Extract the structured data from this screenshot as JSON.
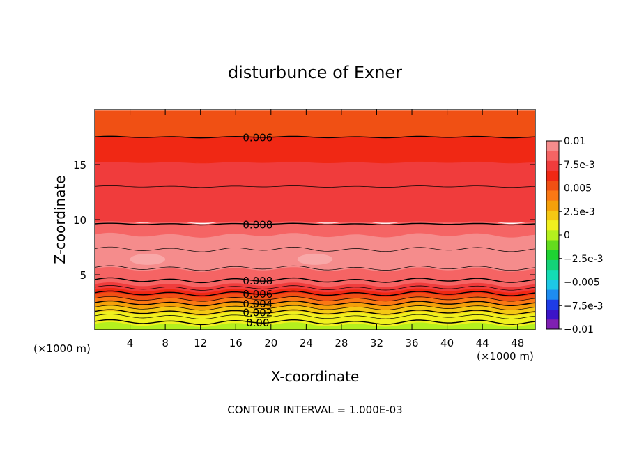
{
  "chart_data": {
    "type": "heatmap",
    "title": "disturbunce of Exner",
    "xlabel": "X-coordinate",
    "ylabel": "Z-coordinate",
    "x_unit_left": "(×1000 m)",
    "x_unit_right": "(×1000 m)",
    "footer": "CONTOUR INTERVAL = 1.000E-03",
    "xlim": [
      0,
      50
    ],
    "ylim": [
      0,
      20
    ],
    "x_ticks": [
      4,
      8,
      12,
      16,
      20,
      24,
      28,
      32,
      36,
      40,
      44,
      48
    ],
    "y_ticks": [
      5,
      10,
      15
    ],
    "colorbar": {
      "range": [
        -0.01,
        0.01
      ],
      "labels": [
        {
          "value": 0.01,
          "text": "0.01"
        },
        {
          "value": 0.0075,
          "text": "7.5e-3"
        },
        {
          "value": 0.005,
          "text": "0.005"
        },
        {
          "value": 0.0025,
          "text": "2.5e-3"
        },
        {
          "value": 0,
          "text": "0"
        },
        {
          "value": -0.0025,
          "text": "−2.5e-3"
        },
        {
          "value": -0.005,
          "text": "−0.005"
        },
        {
          "value": -0.0075,
          "text": "−7.5e-3"
        },
        {
          "value": -0.01,
          "text": "−0.01"
        }
      ],
      "colors": [
        "#7f1fb2",
        "#3c14c8",
        "#1e3ce6",
        "#1e8cf0",
        "#1ec8e6",
        "#14dcb4",
        "#14d278",
        "#1ed232",
        "#64dc1e",
        "#b4f01e",
        "#f0f01e",
        "#f5c814",
        "#f5a00a",
        "#fa7814",
        "#f05014",
        "#f02814",
        "#f03c3c",
        "#f56464",
        "#f58c8c"
      ]
    },
    "layers": [
      {
        "z0": 0,
        "z1": 0.5,
        "value": 0.0005
      },
      {
        "z0": 0.5,
        "z1": 1.0,
        "value": 0.001
      },
      {
        "z0": 1.0,
        "z1": 1.5,
        "value": 0.0015
      },
      {
        "z0": 1.5,
        "z1": 2.0,
        "value": 0.0025
      },
      {
        "z0": 2.0,
        "z1": 2.4,
        "value": 0.003
      },
      {
        "z0": 2.4,
        "z1": 2.8,
        "value": 0.004
      },
      {
        "z0": 2.8,
        "z1": 3.2,
        "value": 0.005
      },
      {
        "z0": 3.2,
        "z1": 3.6,
        "value": 0.006
      },
      {
        "z0": 3.6,
        "z1": 4.1,
        "value": 0.007
      },
      {
        "z0": 4.1,
        "z1": 4.7,
        "value": 0.008
      },
      {
        "z0": 4.7,
        "z1": 5.5,
        "value": 0.0085
      },
      {
        "z0": 5.5,
        "z1": 7.2,
        "value": 0.0095
      },
      {
        "z0": 7.2,
        "z1": 8.6,
        "value": 0.009
      },
      {
        "z0": 8.6,
        "z1": 9.8,
        "value": 0.0085
      },
      {
        "z0": 9.8,
        "z1": 13.0,
        "value": 0.0075
      },
      {
        "z0": 13.0,
        "z1": 15.2,
        "value": 0.007
      },
      {
        "z0": 15.2,
        "z1": 17.5,
        "value": 0.0065
      },
      {
        "z0": 17.5,
        "z1": 19.9,
        "value": 0.0055
      }
    ],
    "contours": [
      {
        "z": 0.7,
        "label": "0.00"
      },
      {
        "z": 1.6,
        "label": "0.002"
      },
      {
        "z": 2.4,
        "label": "0.004"
      },
      {
        "z": 3.3,
        "label": "0.006"
      },
      {
        "z": 4.5,
        "label": "0.008"
      },
      {
        "z": 9.6,
        "label": "0.008"
      },
      {
        "z": 17.5,
        "label": "0.006"
      },
      {
        "z": 1.2,
        "label": ""
      },
      {
        "z": 2.0,
        "label": ""
      },
      {
        "z": 2.8,
        "label": ""
      },
      {
        "z": 3.8,
        "label": ""
      },
      {
        "z": 5.6,
        "label": ""
      },
      {
        "z": 7.3,
        "label": ""
      },
      {
        "z": 13.0,
        "label": ""
      }
    ],
    "highlights": [
      {
        "x": 6.0,
        "z": 6.4
      },
      {
        "x": 25.0,
        "z": 6.4
      }
    ]
  }
}
